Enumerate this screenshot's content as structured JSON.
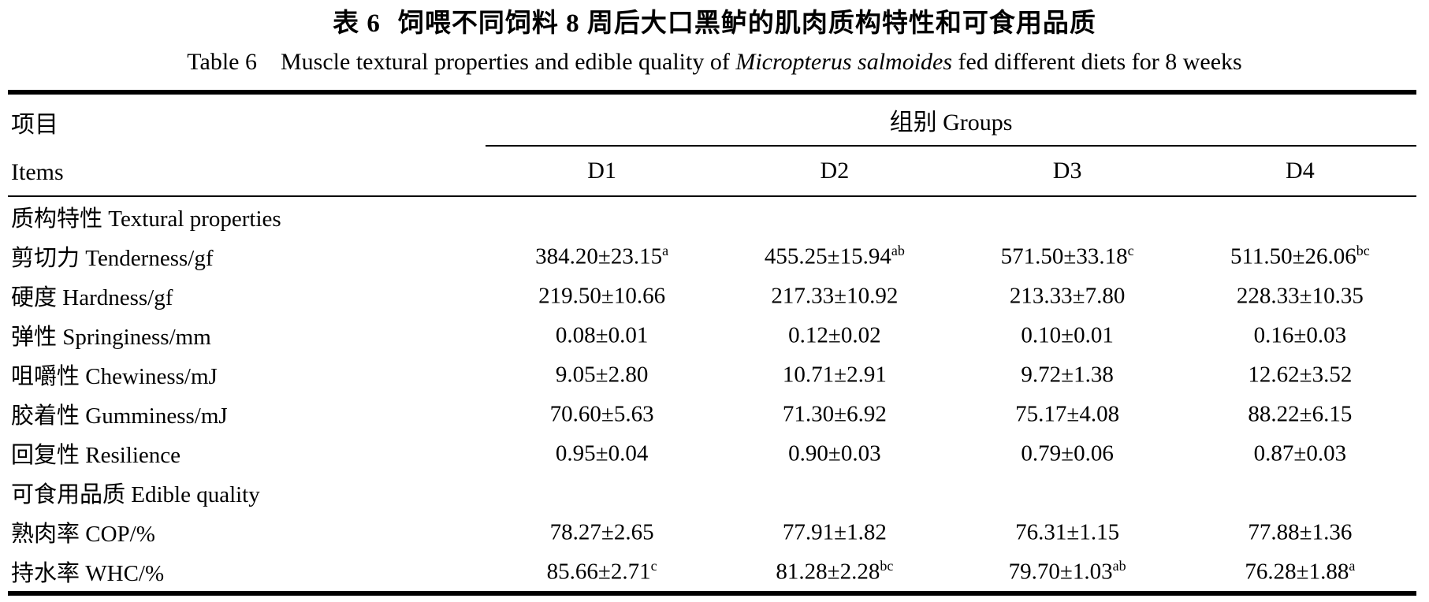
{
  "page": {
    "title_zh_prefix": "表 6",
    "title_zh_rest": "饲喂不同饲料 8 周后大口黑鲈的肌肉质构特性和可食用品质",
    "title_en_prefix": "Table 6",
    "title_en_before_italic": "Muscle textural properties and edible quality of ",
    "title_en_italic": "Micropterus salmoides",
    "title_en_after_italic": " fed different diets for 8 weeks"
  },
  "table": {
    "items_header_zh": "项目",
    "items_header_en": "Items",
    "groups_header": "组别 Groups",
    "group_columns": [
      "D1",
      "D2",
      "D3",
      "D4"
    ],
    "rows": [
      {
        "type": "section",
        "label": "质构特性 Textural properties"
      },
      {
        "type": "data",
        "label": "剪切力 Tenderness/gf",
        "cells": [
          {
            "value": "384.20±23.15",
            "sup": "a"
          },
          {
            "value": "455.25±15.94",
            "sup": "ab"
          },
          {
            "value": "571.50±33.18",
            "sup": "c"
          },
          {
            "value": "511.50±26.06",
            "sup": "bc"
          }
        ]
      },
      {
        "type": "data",
        "label": "硬度 Hardness/gf",
        "cells": [
          {
            "value": "219.50±10.66",
            "sup": ""
          },
          {
            "value": "217.33±10.92",
            "sup": ""
          },
          {
            "value": "213.33±7.80",
            "sup": ""
          },
          {
            "value": "228.33±10.35",
            "sup": ""
          }
        ]
      },
      {
        "type": "data",
        "label": "弹性 Springiness/mm",
        "cells": [
          {
            "value": "0.08±0.01",
            "sup": ""
          },
          {
            "value": "0.12±0.02",
            "sup": ""
          },
          {
            "value": "0.10±0.01",
            "sup": ""
          },
          {
            "value": "0.16±0.03",
            "sup": ""
          }
        ]
      },
      {
        "type": "data",
        "label": "咀嚼性 Chewiness/mJ",
        "cells": [
          {
            "value": "9.05±2.80",
            "sup": ""
          },
          {
            "value": "10.71±2.91",
            "sup": ""
          },
          {
            "value": "9.72±1.38",
            "sup": ""
          },
          {
            "value": "12.62±3.52",
            "sup": ""
          }
        ]
      },
      {
        "type": "data",
        "label": "胶着性 Gumminess/mJ",
        "cells": [
          {
            "value": "70.60±5.63",
            "sup": ""
          },
          {
            "value": "71.30±6.92",
            "sup": ""
          },
          {
            "value": "75.17±4.08",
            "sup": ""
          },
          {
            "value": "88.22±6.15",
            "sup": ""
          }
        ]
      },
      {
        "type": "data",
        "label": "回复性 Resilience",
        "cells": [
          {
            "value": "0.95±0.04",
            "sup": ""
          },
          {
            "value": "0.90±0.03",
            "sup": ""
          },
          {
            "value": "0.79±0.06",
            "sup": ""
          },
          {
            "value": "0.87±0.03",
            "sup": ""
          }
        ]
      },
      {
        "type": "section",
        "label": "可食用品质 Edible quality"
      },
      {
        "type": "data",
        "label": "熟肉率 COP/%",
        "cells": [
          {
            "value": "78.27±2.65",
            "sup": ""
          },
          {
            "value": "77.91±1.82",
            "sup": ""
          },
          {
            "value": "76.31±1.15",
            "sup": ""
          },
          {
            "value": "77.88±1.36",
            "sup": ""
          }
        ]
      },
      {
        "type": "data",
        "label": "持水率 WHC/%",
        "cells": [
          {
            "value": "85.66±2.71",
            "sup": "c"
          },
          {
            "value": "81.28±2.28",
            "sup": "bc"
          },
          {
            "value": "79.70±1.03",
            "sup": "ab"
          },
          {
            "value": "76.28±1.88",
            "sup": "a"
          }
        ]
      }
    ]
  }
}
